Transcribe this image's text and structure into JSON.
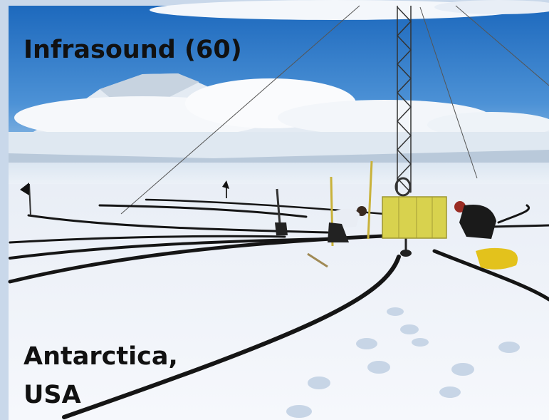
{
  "title": "Infrasound (60)",
  "caption": [
    "Antarctica,",
    "USA"
  ]
}
